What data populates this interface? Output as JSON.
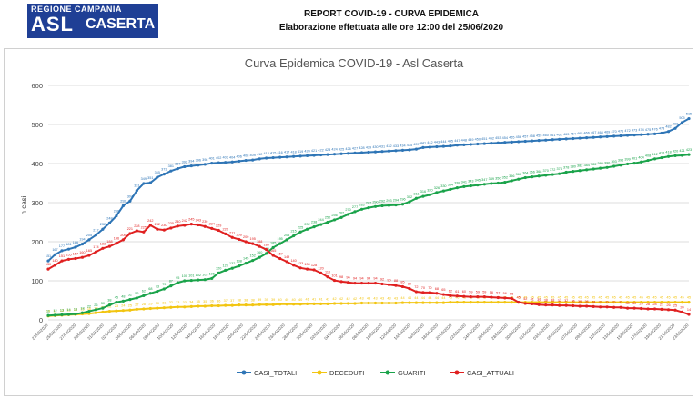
{
  "header": {
    "logo_line1": "REGIONE CAMPANIA",
    "logo_asl": "ASL",
    "logo_caserta": "CASERTA",
    "title": "REPORT COVID-19 - CURVA EPIDEMICA",
    "subtitle": "Elaborazione effettuata alle ore 12:00 del 25/06/2020"
  },
  "colors": {
    "casi_totali": "#2e75b6",
    "deceduti": "#f2c511",
    "guariti": "#1aa34a",
    "casi_attuali": "#e02020"
  },
  "chart_data": {
    "type": "line",
    "title": "Curva Epidemica COVID-19 - Asl Caserta",
    "xlabel": "",
    "ylabel": "n casi",
    "ylim": [
      0,
      600
    ],
    "yticks": [
      0,
      100,
      200,
      300,
      400,
      500,
      600
    ],
    "grid": true,
    "legend_position": "bottom",
    "x_start": "23/03/2020",
    "x_end": "23/06/2020",
    "x_ticks": [
      "23/03/2020",
      "25/03/2020",
      "27/03/2020",
      "29/03/2020",
      "31/03/2020",
      "02/04/2020",
      "04/04/2020",
      "06/04/2020",
      "08/04/2020",
      "10/04/2020",
      "12/04/2020",
      "14/04/2020",
      "16/04/2020",
      "18/04/2020",
      "20/04/2020",
      "22/04/2020",
      "24/04/2020",
      "26/04/2020",
      "28/04/2020",
      "30/04/2020",
      "02/05/2020",
      "04/05/2020",
      "06/05/2020",
      "08/05/2020",
      "10/05/2020",
      "12/05/2020",
      "14/05/2020",
      "16/05/2020",
      "18/05/2020",
      "20/05/2020",
      "22/05/2020",
      "24/05/2020",
      "26/05/2020",
      "28/05/2020",
      "30/05/2020",
      "01/06/2020",
      "03/06/2020",
      "05/06/2020",
      "07/06/2020",
      "09/06/2020",
      "11/06/2020",
      "13/06/2020",
      "15/06/2020",
      "17/06/2020",
      "19/06/2020",
      "21/06/2020",
      "23/06/2020"
    ],
    "series": [
      {
        "name": "CASI_TOTALI",
        "values": [
          151,
          167,
          177,
          181,
          186,
          194,
          205,
          217,
          232,
          248,
          266,
          292,
          304,
          331,
          349,
          351,
          365,
          373,
          381,
          387,
          392,
          394,
          396,
          398,
          401,
          402,
          403,
          404,
          406,
          408,
          409,
          412,
          414,
          415,
          416,
          417,
          418,
          419,
          420,
          421,
          422,
          423,
          424,
          425,
          426,
          427,
          428,
          429,
          430,
          431,
          432,
          433,
          434,
          435,
          437,
          441,
          442,
          443,
          444,
          445,
          447,
          448,
          449,
          450,
          451,
          452,
          453,
          454,
          455,
          456,
          457,
          458,
          459,
          460,
          461,
          462,
          463,
          464,
          465,
          466,
          467,
          468,
          469,
          470,
          471,
          472,
          473,
          474,
          475,
          476,
          478,
          482,
          490,
          505,
          515
        ],
        "data_labels": [
          151,
          167,
          177,
          181,
          186,
          194,
          205,
          217,
          232,
          248,
          266,
          292,
          304,
          331,
          349,
          351,
          365,
          373,
          381,
          387,
          392,
          394,
          396,
          398,
          401,
          402,
          403,
          404,
          406,
          408,
          409,
          412,
          414,
          415,
          416,
          417,
          418,
          419,
          420,
          421,
          422,
          423,
          424,
          425,
          426,
          427,
          428,
          429,
          430,
          431,
          432,
          433,
          434,
          435,
          437,
          441,
          442,
          443,
          444,
          445,
          447,
          448,
          449,
          450,
          451,
          452,
          453,
          454,
          455,
          456,
          457,
          458,
          459,
          460,
          461,
          462,
          463,
          464,
          465,
          466,
          467,
          468,
          469,
          470,
          471,
          472,
          473,
          474,
          475,
          476,
          478,
          482,
          490,
          505,
          515
        ]
      },
      {
        "name": "DECEDUTI",
        "values": [
          10,
          11,
          12,
          13,
          14,
          15,
          16,
          18,
          20,
          22,
          23,
          24,
          25,
          27,
          28,
          29,
          30,
          31,
          32,
          33,
          33,
          34,
          35,
          35,
          36,
          36,
          37,
          37,
          38,
          38,
          38,
          39,
          39,
          39,
          40,
          40,
          40,
          40,
          41,
          41,
          41,
          41,
          42,
          42,
          42,
          42,
          43,
          43,
          43,
          43,
          43,
          43,
          44,
          44,
          44,
          44,
          44,
          44,
          44,
          45,
          45,
          45,
          45,
          45,
          45,
          45,
          45,
          45,
          45,
          45,
          45,
          45,
          45,
          45,
          45,
          45,
          45,
          45,
          45,
          45,
          45,
          45,
          45,
          45,
          45,
          45,
          45,
          45,
          45,
          45,
          45,
          45,
          45,
          45,
          45
        ]
      },
      {
        "name": "GUARITI",
        "values": [
          11,
          12,
          13,
          14,
          15,
          18,
          22,
          26,
          30,
          38,
          45,
          48,
          52,
          56,
          62,
          68,
          73,
          79,
          87,
          95,
          100,
          101,
          102,
          103,
          106,
          120,
          127,
          132,
          138,
          145,
          152,
          160,
          170,
          185,
          195,
          205,
          215,
          225,
          232,
          238,
          244,
          250,
          256,
          262,
          270,
          277,
          283,
          287,
          290,
          292,
          293,
          294,
          296,
          302,
          311,
          316,
          320,
          326,
          330,
          334,
          338,
          341,
          343,
          345,
          347,
          349,
          350,
          352,
          356,
          360,
          364,
          366,
          368,
          370,
          372,
          374,
          378,
          380,
          382,
          384,
          386,
          388,
          390,
          393,
          396,
          399,
          401,
          404,
          408,
          412,
          415,
          418,
          420,
          421,
          423
        ],
        "data_labels": [
          11,
          12,
          13,
          14,
          15,
          18,
          22,
          26,
          30,
          38,
          45,
          48,
          52,
          56,
          62,
          68,
          73,
          79,
          87,
          95,
          100,
          101,
          102,
          103,
          106,
          120,
          127,
          132,
          138,
          145,
          152,
          160,
          170,
          185,
          195,
          205,
          215,
          225,
          232,
          238,
          244,
          250,
          256,
          262,
          270,
          277,
          283,
          287,
          290,
          292,
          293,
          294,
          296,
          302,
          311,
          316,
          320,
          326,
          330,
          334,
          338,
          341,
          343,
          345,
          347,
          349,
          350,
          352,
          356,
          360,
          364,
          366,
          368,
          370,
          372,
          374,
          378,
          380,
          382,
          384,
          386,
          388,
          390,
          393,
          396,
          399,
          401,
          404,
          408,
          412,
          415,
          418,
          420,
          421,
          423
        ]
      },
      {
        "name": "CASI_ATTUALI",
        "values": [
          130,
          140,
          151,
          155,
          157,
          160,
          165,
          174,
          183,
          188,
          196,
          205,
          221,
          228,
          225,
          242,
          232,
          230,
          235,
          240,
          242,
          245,
          243,
          239,
          234,
          229,
          220,
          211,
          206,
          200,
          195,
          188,
          180,
          165,
          157,
          149,
          140,
          133,
          130,
          128,
          120,
          110,
          101,
          98,
          96,
          94,
          94,
          94,
          94,
          92,
          90,
          88,
          85,
          80,
          72,
          70,
          70,
          68,
          65,
          62,
          61,
          60,
          59,
          59,
          59,
          58,
          57,
          56,
          55,
          45,
          42,
          41,
          39,
          38,
          38,
          37,
          37,
          36,
          35,
          35,
          34,
          33,
          33,
          32,
          32,
          30,
          30,
          29,
          28,
          28,
          27,
          26,
          25,
          20,
          14
        ]
      }
    ]
  },
  "legend": {
    "items": [
      "CASI_TOTALI",
      "DECEDUTI",
      "GUARITI",
      "CASI_ATTUALI"
    ]
  }
}
